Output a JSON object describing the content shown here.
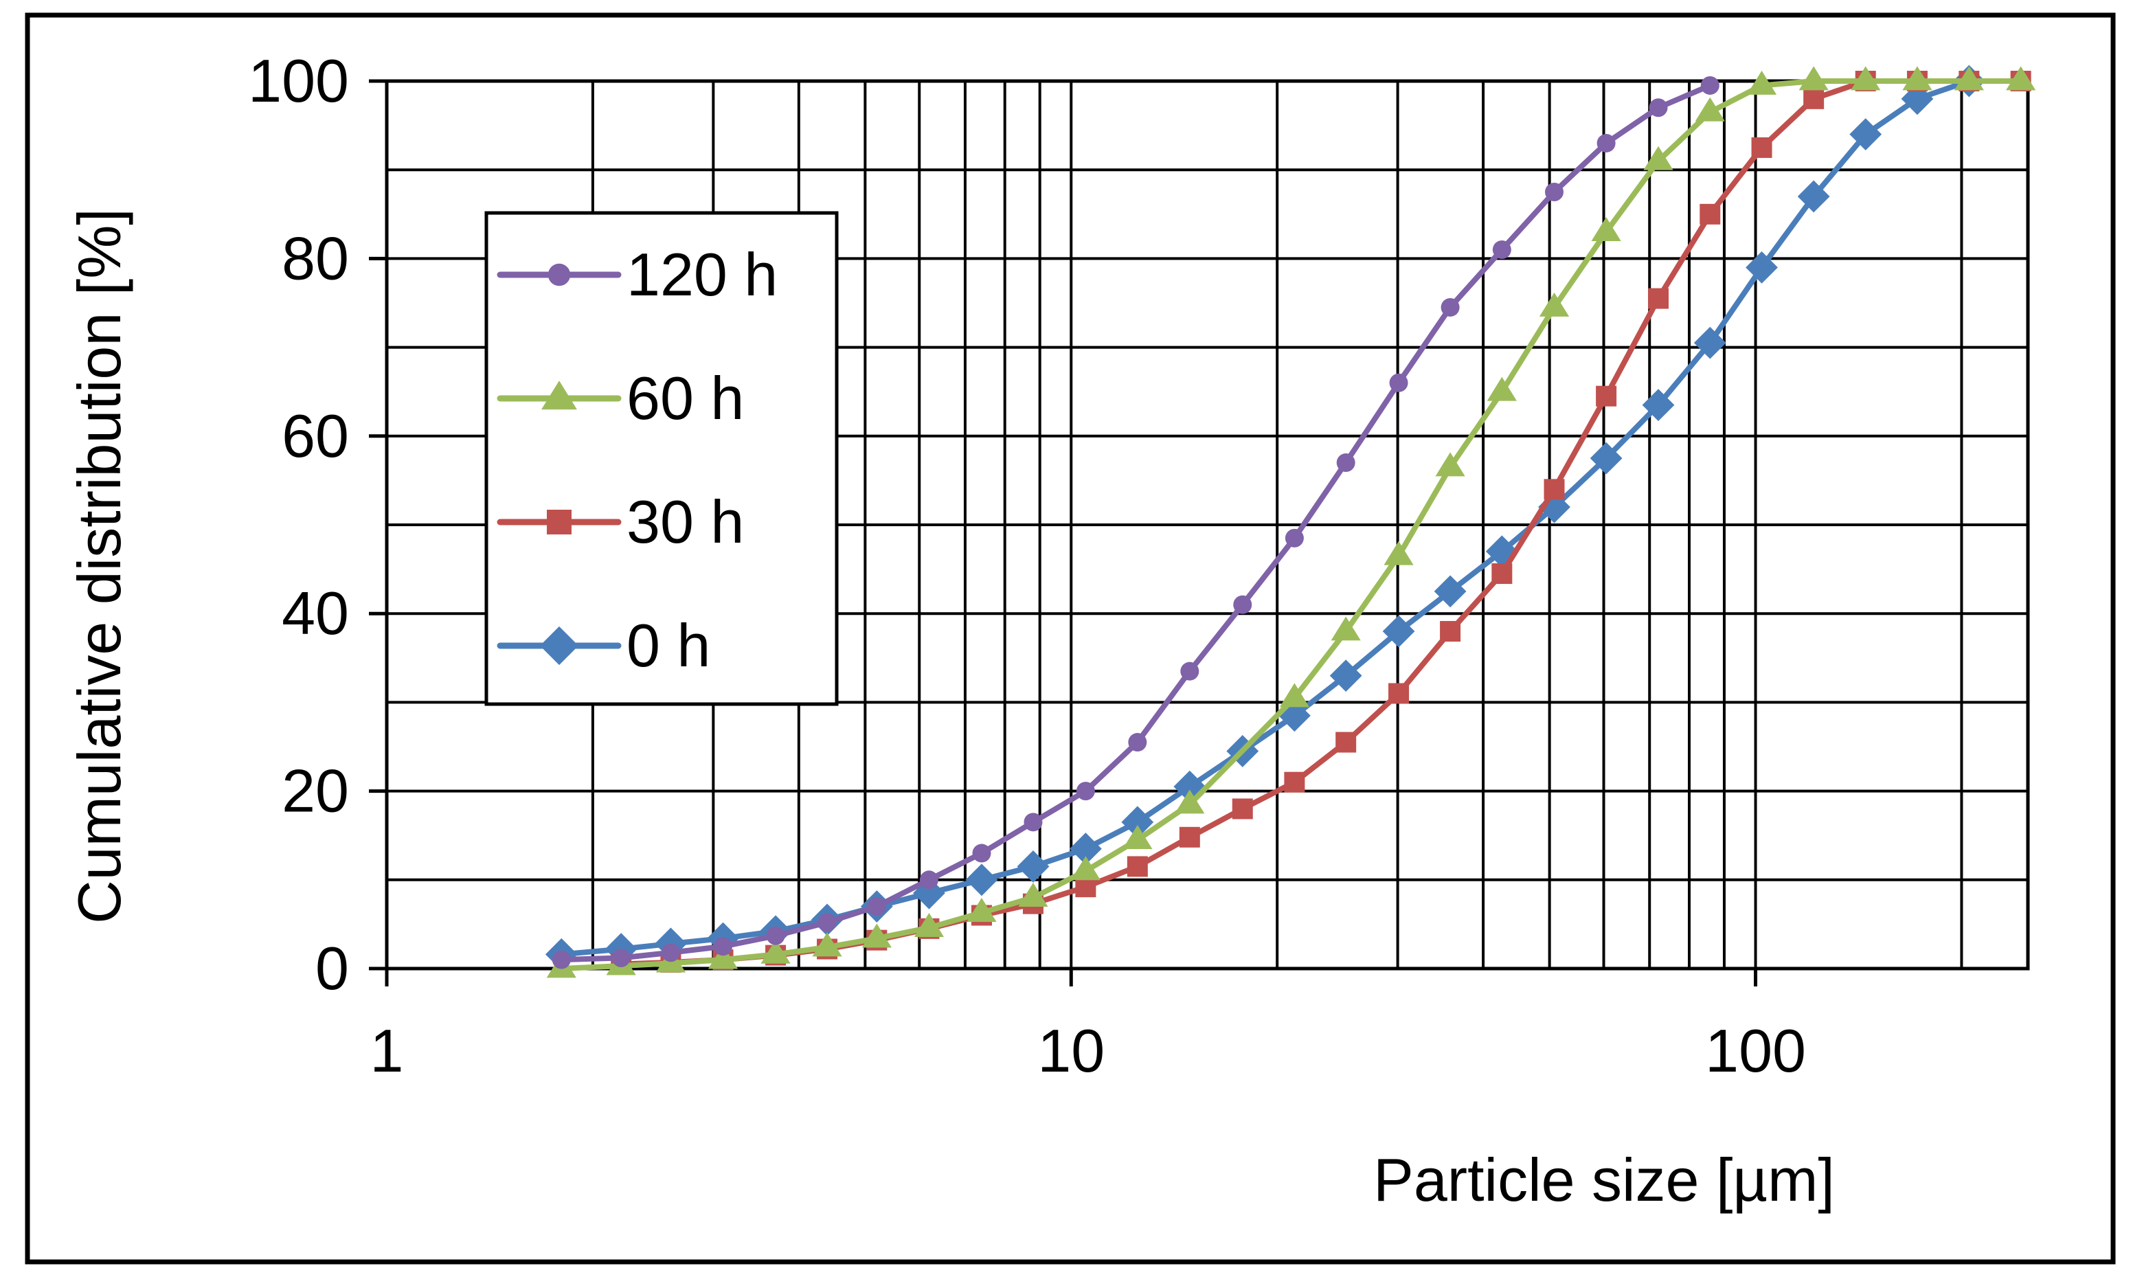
{
  "chart_data": {
    "type": "line",
    "title": "",
    "xlabel": "Particle size [µm]",
    "ylabel": "Cumulative distribution  [%]",
    "xscale": "log",
    "xlim": [
      1,
      250
    ],
    "ylim": [
      0,
      100
    ],
    "xticks": [
      1,
      10,
      100
    ],
    "xtick_labels": [
      "1",
      "10",
      "100"
    ],
    "yticks": [
      0,
      20,
      40,
      60,
      80,
      100
    ],
    "ytick_labels": [
      "0",
      "20",
      "40",
      "60",
      "80",
      "100"
    ],
    "grid": true,
    "legend_position": "upper-left",
    "series": [
      {
        "name": "120 h",
        "color": "#7f62a8",
        "marker": "circle",
        "x": [
          1.8,
          2.2,
          2.6,
          3.1,
          3.7,
          4.4,
          5.2,
          6.2,
          7.4,
          8.8,
          10.5,
          12.5,
          14.9,
          17.8,
          21.2,
          25.2,
          30.1,
          35.8,
          42.6,
          50.8,
          60.5,
          72.1,
          85.8
        ],
        "y": [
          1.0,
          1.2,
          1.8,
          2.5,
          3.7,
          5.2,
          7.0,
          10.0,
          13.0,
          16.5,
          20.0,
          25.5,
          33.5,
          41.0,
          48.5,
          57.0,
          66.0,
          74.5,
          81.0,
          87.5,
          93.0,
          97.0,
          99.5
        ]
      },
      {
        "name": "60 h",
        "color": "#9bbb59",
        "marker": "triangle",
        "x": [
          1.8,
          2.2,
          2.6,
          3.1,
          3.7,
          4.4,
          5.2,
          6.2,
          7.4,
          8.8,
          10.5,
          12.5,
          14.9,
          21.2,
          25.2,
          30.1,
          35.8,
          42.6,
          50.8,
          60.5,
          72.1,
          85.8,
          102.1,
          121.6,
          144.8,
          172.3,
          205.1,
          244.1
        ],
        "y": [
          0.0,
          0.3,
          0.6,
          1.0,
          1.6,
          2.4,
          3.4,
          4.6,
          6.3,
          8.0,
          11.0,
          14.5,
          18.5,
          30.5,
          38.0,
          46.5,
          56.5,
          65.0,
          74.5,
          83.0,
          91.0,
          96.5,
          99.5,
          100.0,
          100.0,
          100.0,
          100.0,
          100.0
        ]
      },
      {
        "name": "30 h",
        "color": "#c0504d",
        "marker": "square",
        "x": [
          2.2,
          2.6,
          3.1,
          3.7,
          4.4,
          5.2,
          6.2,
          7.4,
          8.8,
          10.5,
          12.5,
          14.9,
          17.8,
          21.2,
          25.2,
          30.1,
          35.8,
          42.6,
          50.8,
          60.5,
          72.1,
          85.8,
          102.1,
          121.6,
          144.8,
          172.3,
          205.1,
          244.1
        ],
        "y": [
          0.5,
          0.7,
          1.0,
          1.5,
          2.2,
          3.2,
          4.5,
          6.0,
          7.3,
          9.2,
          11.5,
          14.8,
          18.0,
          21.0,
          25.5,
          31.0,
          38.0,
          44.5,
          54.0,
          64.5,
          75.5,
          85.0,
          92.5,
          98.0,
          100.0,
          100.0,
          100.0,
          100.0
        ]
      },
      {
        "name": "0 h",
        "color": "#4a7ebb",
        "marker": "diamond",
        "x": [
          1.8,
          2.2,
          2.6,
          3.1,
          3.7,
          4.4,
          5.2,
          6.2,
          7.4,
          8.8,
          10.5,
          12.5,
          14.9,
          17.8,
          21.2,
          25.2,
          30.1,
          35.8,
          42.6,
          50.8,
          60.5,
          72.1,
          85.8,
          102.1,
          121.6,
          144.8,
          172.3,
          205.1
        ],
        "y": [
          1.6,
          2.2,
          2.8,
          3.4,
          4.2,
          5.5,
          7.0,
          8.5,
          10.0,
          11.5,
          13.5,
          16.5,
          20.5,
          24.5,
          28.5,
          33.0,
          38.0,
          42.5,
          47.0,
          52.0,
          57.5,
          63.5,
          70.5,
          79.0,
          87.0,
          94.0,
          98.0,
          100.0
        ]
      }
    ]
  }
}
